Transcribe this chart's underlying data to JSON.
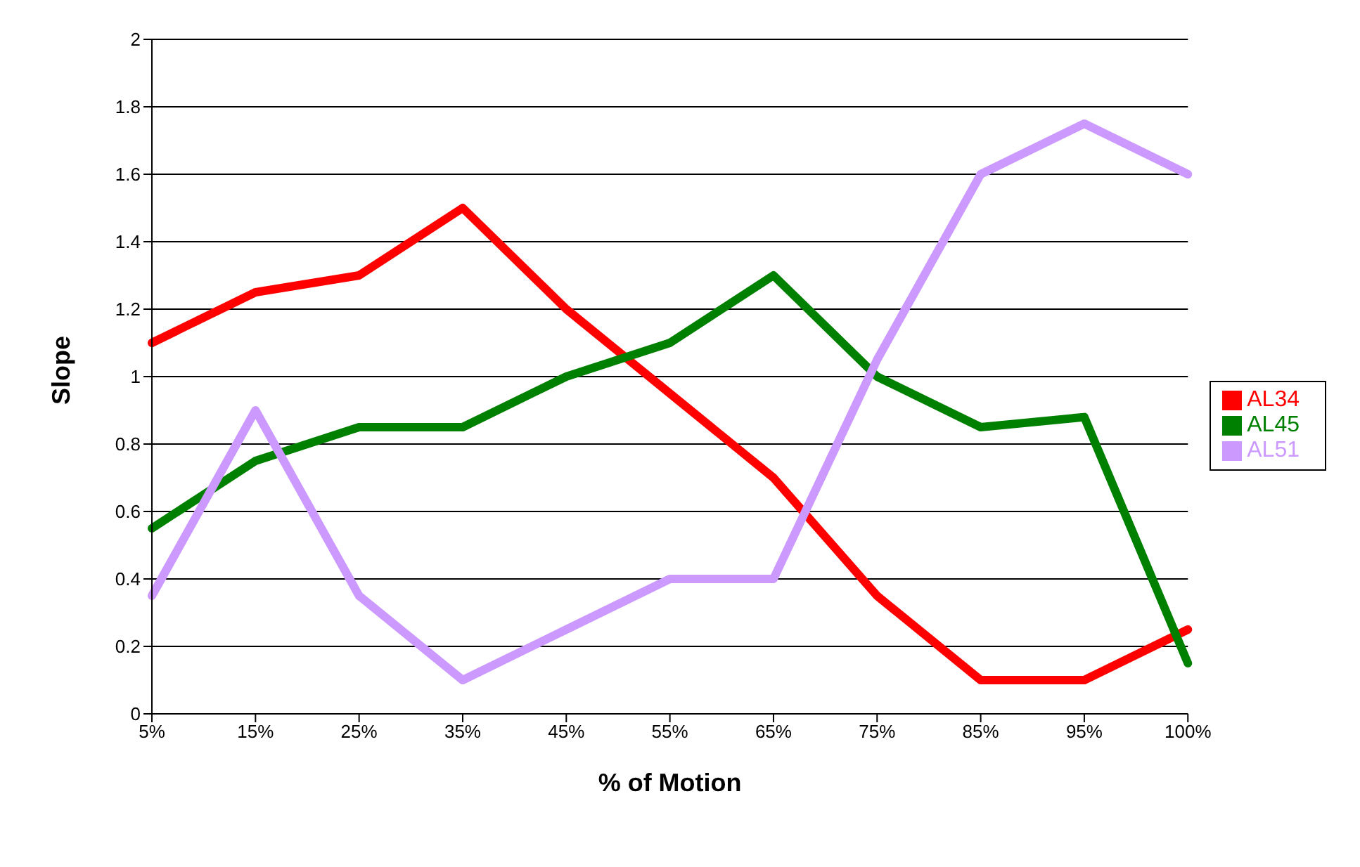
{
  "chart_data": {
    "type": "line",
    "xlabel": "% of Motion",
    "ylabel": "Slope",
    "categories": [
      "5%",
      "15%",
      "25%",
      "35%",
      "45%",
      "55%",
      "65%",
      "75%",
      "85%",
      "95%",
      "100%"
    ],
    "series": [
      {
        "name": "AL34",
        "color": "#ff0000",
        "values": [
          1.1,
          1.25,
          1.3,
          1.5,
          1.2,
          0.95,
          0.7,
          0.35,
          0.1,
          0.1,
          0.25
        ]
      },
      {
        "name": "AL45",
        "color": "#008000",
        "values": [
          0.55,
          0.75,
          0.85,
          0.85,
          1.0,
          1.1,
          1.3,
          1.0,
          0.85,
          0.88,
          0.15
        ]
      },
      {
        "name": "AL51",
        "color": "#cc99ff",
        "values": [
          0.35,
          0.9,
          0.35,
          0.1,
          0.25,
          0.4,
          0.4,
          1.05,
          1.6,
          1.75,
          1.6
        ]
      }
    ],
    "ylim": [
      0,
      2
    ],
    "yticks": [
      0,
      0.2,
      0.4,
      0.6,
      0.8,
      1,
      1.2,
      1.4,
      1.6,
      1.8,
      2
    ],
    "grid": "y",
    "legend": "right",
    "marker": "none",
    "line_style": "solid"
  }
}
